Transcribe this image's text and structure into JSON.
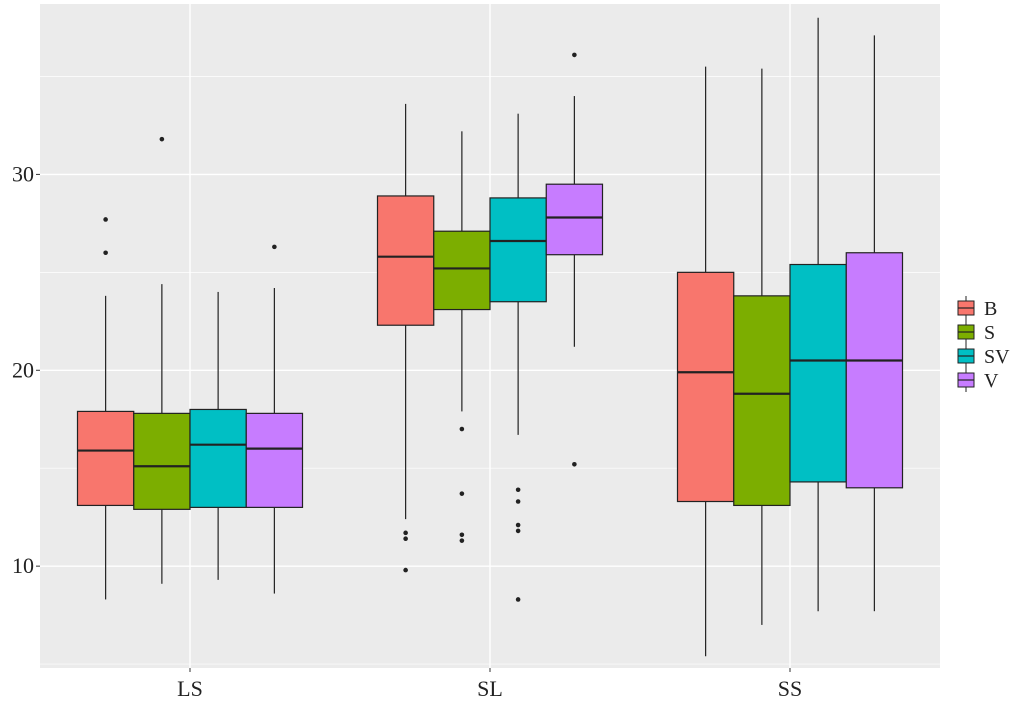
{
  "chart_data": {
    "type": "box",
    "title": "",
    "xlabel": "",
    "ylabel": "",
    "categories": [
      "LS",
      "SL",
      "SS"
    ],
    "y_ticks": [
      10,
      20,
      30
    ],
    "ylim": [
      4.8,
      38.7
    ],
    "grid": true,
    "legend_position": "right",
    "series": [
      {
        "name": "B",
        "color": "#F8766D",
        "boxes": [
          {
            "category": "LS",
            "min": 8.3,
            "q1": 13.1,
            "median": 15.9,
            "q3": 17.9,
            "max": 23.8,
            "outliers": [
              26.0,
              27.7
            ]
          },
          {
            "category": "SL",
            "min": 12.4,
            "q1": 22.3,
            "median": 25.8,
            "q3": 28.9,
            "max": 33.6,
            "outliers": [
              9.8,
              11.4,
              11.7
            ]
          },
          {
            "category": "SS",
            "min": 5.4,
            "q1": 13.3,
            "median": 19.9,
            "q3": 25.0,
            "max": 35.5,
            "outliers": []
          }
        ]
      },
      {
        "name": "S",
        "color": "#7CAE00",
        "boxes": [
          {
            "category": "LS",
            "min": 9.1,
            "q1": 12.9,
            "median": 15.1,
            "q3": 17.8,
            "max": 24.4,
            "outliers": [
              31.8
            ]
          },
          {
            "category": "SL",
            "min": 17.9,
            "q1": 23.1,
            "median": 25.2,
            "q3": 27.1,
            "max": 32.2,
            "outliers": [
              11.3,
              11.6,
              13.7,
              17.0
            ]
          },
          {
            "category": "SS",
            "min": 7.0,
            "q1": 13.1,
            "median": 18.8,
            "q3": 23.8,
            "max": 35.4,
            "outliers": []
          }
        ]
      },
      {
        "name": "SV",
        "color": "#00BFC4",
        "boxes": [
          {
            "category": "LS",
            "min": 9.3,
            "q1": 13.0,
            "median": 16.2,
            "q3": 18.0,
            "max": 24.0,
            "outliers": []
          },
          {
            "category": "SL",
            "min": 16.7,
            "q1": 23.5,
            "median": 26.6,
            "q3": 28.8,
            "max": 33.1,
            "outliers": [
              8.3,
              11.8,
              12.1,
              13.3,
              13.9
            ]
          },
          {
            "category": "SS",
            "min": 7.7,
            "q1": 14.3,
            "median": 20.5,
            "q3": 25.4,
            "max": 38.0,
            "outliers": []
          }
        ]
      },
      {
        "name": "V",
        "color": "#C77CFF",
        "boxes": [
          {
            "category": "LS",
            "min": 8.6,
            "q1": 13.0,
            "median": 16.0,
            "q3": 17.8,
            "max": 24.2,
            "outliers": [
              26.3
            ]
          },
          {
            "category": "SL",
            "min": 21.2,
            "q1": 25.9,
            "median": 27.8,
            "q3": 29.5,
            "max": 34.0,
            "outliers": [
              15.2,
              36.1
            ]
          },
          {
            "category": "SS",
            "min": 7.7,
            "q1": 14.0,
            "median": 20.5,
            "q3": 26.0,
            "max": 37.1,
            "outliers": []
          }
        ]
      }
    ]
  }
}
